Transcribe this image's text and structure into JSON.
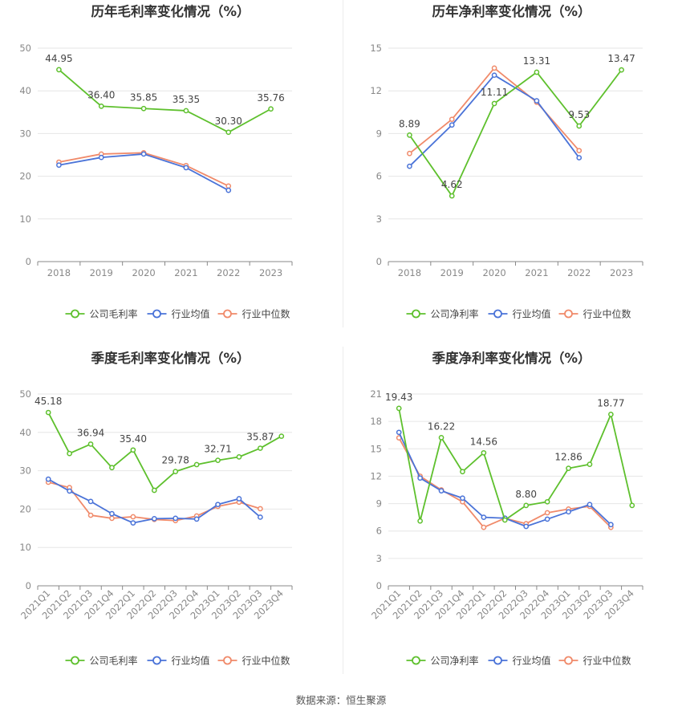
{
  "footer": {
    "source": "数据来源：恒生聚源"
  },
  "colors": {
    "company": "#5ec02d",
    "industry_avg": "#4a73d8",
    "industry_median": "#f08a6a"
  },
  "chart_data": [
    {
      "type": "line",
      "title": "历年毛利率变化情况（%）",
      "categories": [
        "2018",
        "2019",
        "2020",
        "2021",
        "2022",
        "2023"
      ],
      "ylim": [
        0,
        50
      ],
      "yticks": [
        0,
        10,
        20,
        30,
        40,
        50
      ],
      "grid": true,
      "legend_position": "bottom",
      "series": [
        {
          "name": "公司毛利率",
          "values": [
            44.95,
            36.4,
            35.85,
            35.35,
            30.3,
            35.76
          ],
          "labels": [
            "44.95",
            "36.40",
            "35.85",
            "35.35",
            "30.30",
            "35.76"
          ]
        },
        {
          "name": "行业均值",
          "values": [
            22.6,
            24.4,
            25.2,
            22.0,
            16.7,
            null
          ]
        },
        {
          "name": "行业中位数",
          "values": [
            23.3,
            25.2,
            25.5,
            22.5,
            17.7,
            null
          ]
        }
      ]
    },
    {
      "type": "line",
      "title": "历年净利率变化情况（%）",
      "categories": [
        "2018",
        "2019",
        "2020",
        "2021",
        "2022",
        "2023"
      ],
      "ylim": [
        0,
        15
      ],
      "yticks": [
        0,
        3,
        6,
        9,
        12,
        15
      ],
      "grid": true,
      "legend_position": "bottom",
      "series": [
        {
          "name": "公司净利率",
          "values": [
            8.89,
            4.62,
            11.11,
            13.31,
            9.53,
            13.47
          ],
          "labels": [
            "8.89",
            "4.62",
            "11.11",
            "13.31",
            "9.53",
            "13.47"
          ]
        },
        {
          "name": "行业均值",
          "values": [
            6.7,
            9.6,
            13.1,
            11.3,
            7.3,
            null
          ]
        },
        {
          "name": "行业中位数",
          "values": [
            7.6,
            10.0,
            13.6,
            11.2,
            7.8,
            null
          ]
        }
      ]
    },
    {
      "type": "line",
      "title": "季度毛利率变化情况（%）",
      "categories": [
        "2021Q1",
        "2021Q2",
        "2021Q3",
        "2021Q4",
        "2022Q1",
        "2022Q2",
        "2022Q3",
        "2022Q4",
        "2023Q1",
        "2023Q2",
        "2023Q3",
        "2023Q4"
      ],
      "ylim": [
        0,
        50
      ],
      "yticks": [
        0,
        10,
        20,
        30,
        40,
        50
      ],
      "grid": true,
      "legend_position": "bottom",
      "series": [
        {
          "name": "公司毛利率",
          "values": [
            45.18,
            34.5,
            36.94,
            30.8,
            35.4,
            24.9,
            29.78,
            31.6,
            32.71,
            33.6,
            35.87,
            39.0
          ],
          "labels": [
            "45.18",
            "",
            "36.94",
            "",
            "35.40",
            "",
            "29.78",
            "",
            "32.71",
            "",
            "35.87",
            ""
          ]
        },
        {
          "name": "行业均值",
          "values": [
            27.8,
            24.7,
            22.0,
            18.8,
            16.4,
            17.5,
            17.6,
            17.4,
            21.2,
            22.7,
            17.9,
            null
          ]
        },
        {
          "name": "行业中位数",
          "values": [
            27.0,
            25.6,
            18.4,
            17.6,
            18.0,
            17.3,
            17.0,
            18.2,
            20.7,
            21.8,
            20.1,
            null
          ]
        }
      ]
    },
    {
      "type": "line",
      "title": "季度净利率变化情况（%）",
      "categories": [
        "2021Q1",
        "2021Q2",
        "2021Q3",
        "2021Q4",
        "2022Q1",
        "2022Q2",
        "2022Q3",
        "2022Q4",
        "2023Q1",
        "2023Q2",
        "2023Q3",
        "2023Q4"
      ],
      "ylim": [
        0,
        21
      ],
      "yticks": [
        0,
        3,
        6,
        9,
        12,
        15,
        18,
        21
      ],
      "grid": true,
      "legend_position": "bottom",
      "series": [
        {
          "name": "公司净利率",
          "values": [
            19.43,
            7.1,
            16.22,
            12.5,
            14.56,
            7.2,
            8.8,
            9.2,
            12.86,
            13.3,
            18.77,
            8.8
          ],
          "labels": [
            "19.43",
            "",
            "16.22",
            "",
            "14.56",
            "",
            "8.80",
            "",
            "12.86",
            "",
            "18.77",
            ""
          ]
        },
        {
          "name": "行业均值",
          "values": [
            16.8,
            11.8,
            10.4,
            9.6,
            7.5,
            7.4,
            6.5,
            7.3,
            8.1,
            8.9,
            6.7,
            null
          ]
        },
        {
          "name": "行业中位数",
          "values": [
            16.2,
            12.0,
            10.5,
            9.2,
            6.4,
            7.4,
            6.8,
            8.0,
            8.4,
            8.7,
            6.4,
            null
          ]
        }
      ]
    }
  ]
}
